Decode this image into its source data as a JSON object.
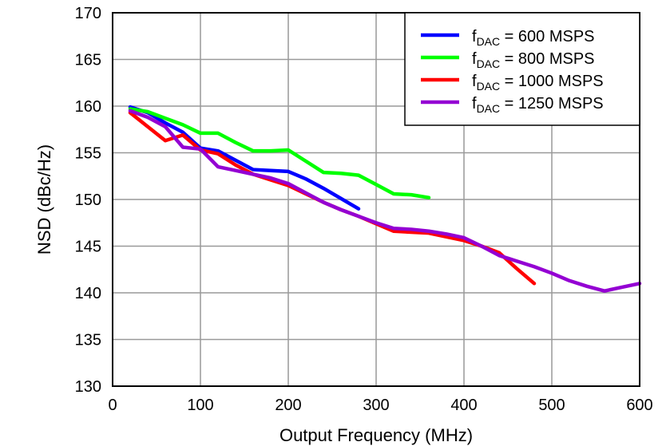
{
  "chart_data": {
    "type": "line",
    "xlabel": "Output Frequency (MHz)",
    "ylabel": "NSD (dBc/Hz)",
    "xlim": [
      0,
      600
    ],
    "ylim": [
      130,
      170
    ],
    "xticks": [
      0,
      100,
      200,
      300,
      400,
      500,
      600
    ],
    "yticks": [
      130,
      135,
      140,
      145,
      150,
      155,
      160,
      165,
      170
    ],
    "grid": true,
    "legend_placement": "top-right",
    "series": [
      {
        "name_main": "f",
        "name_sub": "DAC",
        "name_rest": " = 600 MSPS",
        "color": "#0000ff",
        "x": [
          20,
          40,
          60,
          80,
          100,
          120,
          140,
          160,
          180,
          200,
          220,
          240,
          260,
          280
        ],
        "y": [
          159.9,
          159.3,
          158.2,
          157.2,
          155.5,
          155.2,
          154.2,
          153.2,
          153.1,
          153.0,
          152.2,
          151.2,
          150.1,
          149.0
        ]
      },
      {
        "name_main": "f",
        "name_sub": "DAC",
        "name_rest": " = 800 MSPS",
        "color": "#00ff00",
        "x": [
          20,
          40,
          60,
          80,
          100,
          120,
          140,
          160,
          180,
          200,
          220,
          240,
          260,
          280,
          300,
          320,
          340,
          360
        ],
        "y": [
          159.7,
          159.4,
          158.7,
          158.0,
          157.1,
          157.1,
          156.1,
          155.2,
          155.2,
          155.3,
          154.1,
          152.9,
          152.8,
          152.6,
          151.6,
          150.6,
          150.5,
          150.2
        ]
      },
      {
        "name_main": "f",
        "name_sub": "DAC",
        "name_rest": " = 1000 MSPS",
        "color": "#ff0000",
        "x": [
          20,
          40,
          60,
          80,
          100,
          120,
          140,
          160,
          180,
          200,
          220,
          240,
          260,
          280,
          300,
          320,
          340,
          360,
          380,
          400,
          420,
          440,
          460,
          480
        ],
        "y": [
          159.3,
          157.8,
          156.3,
          156.9,
          155.3,
          154.9,
          153.7,
          152.7,
          152.1,
          151.5,
          150.6,
          149.7,
          148.9,
          148.2,
          147.4,
          146.6,
          146.5,
          146.4,
          146.0,
          145.6,
          145.0,
          144.3,
          142.6,
          141.0
        ]
      },
      {
        "name_main": "f",
        "name_sub": "DAC",
        "name_rest": " = 1250 MSPS",
        "color": "#9400d3",
        "x": [
          20,
          40,
          60,
          80,
          100,
          120,
          140,
          160,
          180,
          200,
          220,
          240,
          260,
          280,
          300,
          320,
          340,
          360,
          380,
          400,
          420,
          440,
          460,
          480,
          500,
          520,
          540,
          560,
          580,
          600
        ],
        "y": [
          159.5,
          158.8,
          157.8,
          155.6,
          155.4,
          153.5,
          153.1,
          152.7,
          152.3,
          151.7,
          150.7,
          149.7,
          148.9,
          148.2,
          147.5,
          146.9,
          146.8,
          146.6,
          146.3,
          145.9,
          145.0,
          144.0,
          143.4,
          142.8,
          142.1,
          141.3,
          140.7,
          140.2,
          140.6,
          141.0
        ]
      }
    ]
  }
}
